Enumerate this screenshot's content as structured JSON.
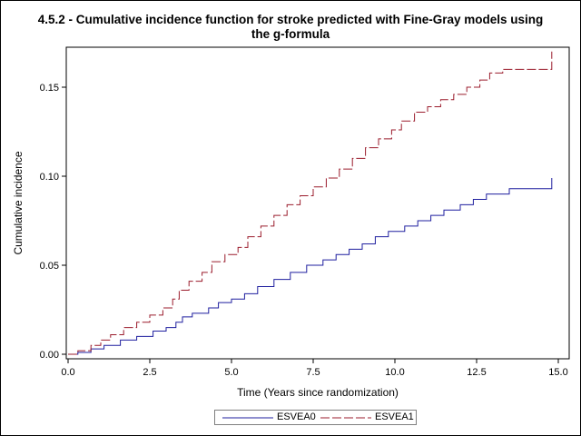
{
  "window": {
    "title_line1": "4.5.2 - Cumulative incidence function for stroke predicted with Fine-Gray models using",
    "title_line2": "the g-formula"
  },
  "chart_data": {
    "type": "line",
    "title": "4.5.2 - Cumulative incidence function for stroke predicted with Fine-Gray models using the g-formula",
    "xlabel": "Time (Years since randomization)",
    "ylabel": "Cumulative incidence",
    "xlim": [
      0,
      15
    ],
    "ylim": [
      0,
      0.17
    ],
    "xticks": [
      0.0,
      2.5,
      5.0,
      7.5,
      10.0,
      12.5,
      15.0
    ],
    "xtick_labels": [
      "0.0",
      "2.5",
      "5.0",
      "7.5",
      "10.0",
      "12.5",
      "15.0"
    ],
    "yticks": [
      0.0,
      0.05,
      0.1,
      0.15
    ],
    "ytick_labels": [
      "0.00",
      "0.05",
      "0.10",
      "0.15"
    ],
    "step": true,
    "grid": false,
    "legend_position": "bottom",
    "series": [
      {
        "name": "ESVEA0",
        "color": "#1f1f9f",
        "dash": "solid",
        "x": [
          0.0,
          0.3,
          0.7,
          1.1,
          1.6,
          2.1,
          2.6,
          3.0,
          3.3,
          3.5,
          3.8,
          4.3,
          4.6,
          5.0,
          5.4,
          5.8,
          6.3,
          6.8,
          7.3,
          7.8,
          8.2,
          8.6,
          9.0,
          9.4,
          9.8,
          10.3,
          10.7,
          11.1,
          11.5,
          12.0,
          12.4,
          12.8,
          13.5,
          14.0,
          14.5,
          14.8
        ],
        "y": [
          0.0,
          0.001,
          0.003,
          0.005,
          0.008,
          0.01,
          0.013,
          0.015,
          0.018,
          0.021,
          0.023,
          0.026,
          0.029,
          0.031,
          0.034,
          0.038,
          0.042,
          0.046,
          0.05,
          0.053,
          0.056,
          0.059,
          0.062,
          0.066,
          0.069,
          0.072,
          0.075,
          0.078,
          0.081,
          0.084,
          0.087,
          0.09,
          0.093,
          0.093,
          0.093,
          0.099
        ]
      },
      {
        "name": "ESVEA1",
        "color": "#9b1c2c",
        "dash": "dashed",
        "x": [
          0.0,
          0.3,
          0.7,
          1.0,
          1.3,
          1.7,
          2.1,
          2.5,
          2.9,
          3.2,
          3.4,
          3.7,
          4.1,
          4.4,
          4.8,
          5.2,
          5.5,
          5.9,
          6.3,
          6.7,
          7.1,
          7.5,
          7.9,
          8.3,
          8.7,
          9.1,
          9.5,
          9.9,
          10.2,
          10.6,
          11.0,
          11.4,
          11.8,
          12.2,
          12.6,
          12.9,
          13.3,
          14.0,
          14.5,
          14.8
        ],
        "y": [
          0.0,
          0.002,
          0.005,
          0.008,
          0.011,
          0.015,
          0.018,
          0.022,
          0.026,
          0.031,
          0.036,
          0.041,
          0.046,
          0.052,
          0.056,
          0.06,
          0.066,
          0.072,
          0.078,
          0.084,
          0.089,
          0.094,
          0.099,
          0.104,
          0.11,
          0.116,
          0.121,
          0.126,
          0.131,
          0.136,
          0.139,
          0.143,
          0.146,
          0.15,
          0.154,
          0.158,
          0.16,
          0.16,
          0.16,
          0.17
        ]
      }
    ]
  }
}
